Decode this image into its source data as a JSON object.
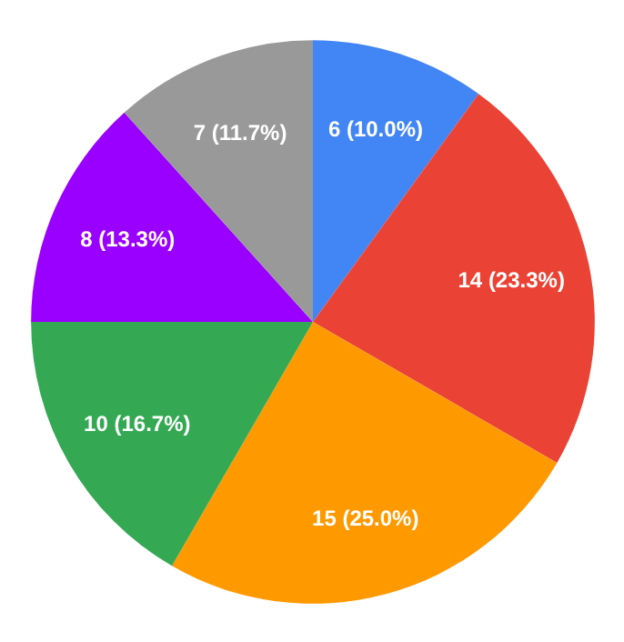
{
  "chart_data": {
    "type": "pie",
    "categories": [
      null,
      null,
      null,
      null,
      null,
      null
    ],
    "values": [
      6,
      14,
      15,
      10,
      8,
      7
    ],
    "colors": [
      "#4285f4",
      "#ea4335",
      "#ff9900",
      "#34a853",
      "#9900ff",
      "#999999"
    ],
    "value_labels": [
      "6 (10.0%)",
      "14 (23.3%)",
      "15 (25.0%)",
      "10 (16.7%)",
      "8 (13.3%)",
      "7 (11.7%)"
    ]
  }
}
